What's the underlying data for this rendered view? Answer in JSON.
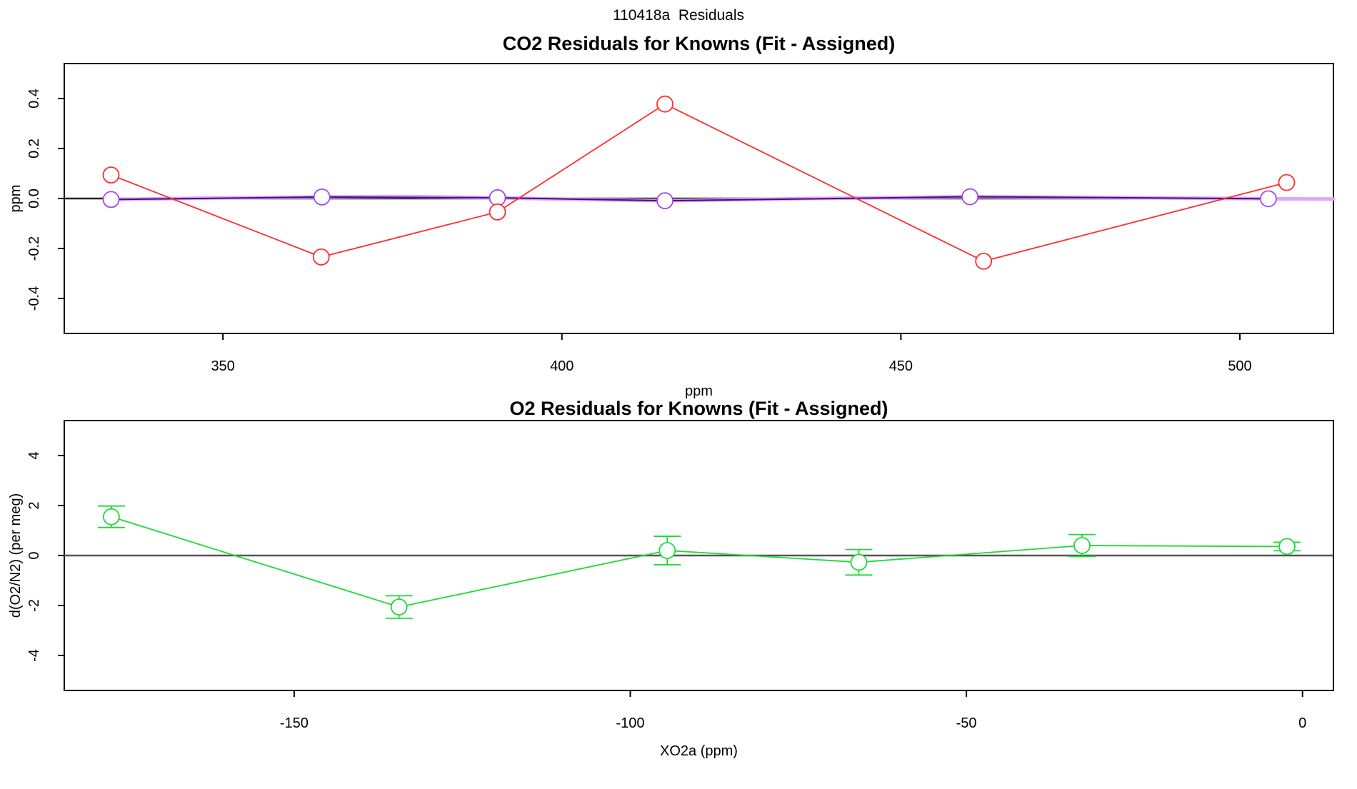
{
  "header": {
    "main_title": "110418a  Residuals"
  },
  "chart_data": [
    {
      "type": "line",
      "title": "CO2 Residuals for Knowns (Fit - Assigned)",
      "xlabel": "ppm",
      "ylabel": "ppm",
      "xlim": [
        326.6,
        513.8
      ],
      "ylim": [
        -0.54,
        0.54
      ],
      "xticks": [
        350,
        400,
        450,
        500
      ],
      "xtick_labels": [
        "350",
        "400",
        "450",
        "500"
      ],
      "yticks": [
        -0.4,
        -0.2,
        0.0,
        0.2,
        0.4
      ],
      "ytick_labels": [
        "-0.4",
        "-0.2",
        "0.0",
        "0.2",
        "0.4"
      ],
      "grid": false,
      "legend": "none",
      "zero_line": true,
      "zero_line_color": "#222222",
      "series": [
        {
          "name": "co2-smooth-fit-curve",
          "color": "#DCA9F2",
          "line_width": 5,
          "markers": false,
          "x": [
            333.5,
            349,
            364.6,
            377,
            390.5,
            403,
            415.2,
            437,
            460.2,
            482,
            504.2,
            513.8
          ],
          "y": [
            -0.004,
            0.002,
            0.006,
            0.008,
            0.003,
            -0.004,
            -0.009,
            0.0,
            0.007,
            0.004,
            -0.001,
            -0.002
          ]
        },
        {
          "name": "co2-residual-secondary",
          "color": "#4A0A8A",
          "marker_color": "#A646E8",
          "line_width": 2,
          "markers": true,
          "x": [
            333.5,
            364.6,
            390.5,
            415.2,
            460.2,
            504.2
          ],
          "y": [
            -0.004,
            0.006,
            0.003,
            -0.009,
            0.007,
            -0.001
          ]
        },
        {
          "name": "co2-residual-primary",
          "color": "#FF2D2D",
          "marker_color": "#FF2D2D",
          "line_width": 1.8,
          "markers": true,
          "x": [
            333.5,
            364.5,
            390.5,
            415.2,
            462.2,
            506.9
          ],
          "y": [
            0.094,
            -0.234,
            -0.054,
            0.378,
            -0.251,
            0.064
          ]
        }
      ]
    },
    {
      "type": "line",
      "title": "O2 Residuals for Knowns (Fit - Assigned)",
      "xlabel": "XO2a (ppm)",
      "ylabel": "d(O2/N2) (per meg)",
      "xlim": [
        -184.2,
        4.6
      ],
      "ylim": [
        -5.4,
        5.4
      ],
      "xticks": [
        -150,
        -100,
        -50,
        0
      ],
      "xtick_labels": [
        "-150",
        "-100",
        "-50",
        "0"
      ],
      "yticks": [
        -4,
        -2,
        0,
        2,
        4
      ],
      "ytick_labels": [
        "-4",
        "-2",
        "0",
        "2",
        "4"
      ],
      "grid": false,
      "legend": "none",
      "zero_line": true,
      "zero_line_color": "#555555",
      "series": [
        {
          "name": "o2-residual",
          "color": "#1DDB36",
          "marker_color": "#1DDB36",
          "line_width": 1.8,
          "markers": true,
          "x": [
            -177.2,
            -134.4,
            -94.5,
            -66.0,
            -32.8,
            -2.3
          ],
          "y": [
            1.55,
            -2.06,
            0.2,
            -0.27,
            0.4,
            0.36
          ],
          "yerr": [
            0.43,
            0.45,
            0.57,
            0.51,
            0.44,
            0.17
          ]
        }
      ]
    }
  ]
}
